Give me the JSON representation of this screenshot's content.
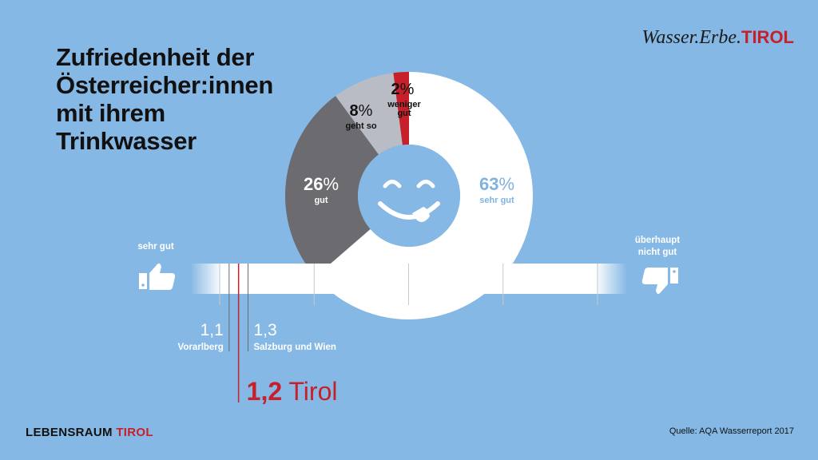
{
  "title": [
    "Zufriedenheit der",
    "Österreicher:innen",
    "mit ihrem",
    "Trinkwasser"
  ],
  "brand": {
    "prefix": "Wasser.Erbe.",
    "accent": "TIROL"
  },
  "footer": {
    "prefix": "LEBENSRAUM ",
    "accent": "TIROL"
  },
  "source": "Quelle: AQA Wasserreport 2017",
  "chart_data": [
    {
      "type": "pie",
      "slices": [
        {
          "label": "sehr gut",
          "value": 63,
          "display": "63",
          "color": "#ffffff",
          "text_color": "#7fb3df"
        },
        {
          "label": "gut",
          "value": 26,
          "display": "26",
          "color": "#6b6b70",
          "text_color": "#ffffff"
        },
        {
          "label": "geht so",
          "value": 8,
          "display": "8",
          "color": "#b9bcc4",
          "text_color": "#111111"
        },
        {
          "label": "weniger gut",
          "value": 2,
          "display": "2",
          "color": "#c8202a",
          "text_color": "#111111"
        }
      ],
      "unit": "%",
      "center_icon": "smiley-tongue-icon"
    },
    {
      "type": "scale",
      "left_label": "sehr gut",
      "right_label": "überhaupt nicht gut",
      "left_icon": "thumbs-up-icon",
      "right_icon": "thumbs-down-icon",
      "range": [
        1,
        5
      ],
      "markers": [
        {
          "value": 1.1,
          "display": "1,1",
          "label": "Vorarlberg",
          "color": "#ffffff"
        },
        {
          "value": 1.2,
          "display": "1,2",
          "label": "Tirol",
          "color": "#c8202a"
        },
        {
          "value": 1.3,
          "display": "1,3",
          "label": "Salzburg und Wien",
          "color": "#ffffff"
        }
      ]
    }
  ]
}
